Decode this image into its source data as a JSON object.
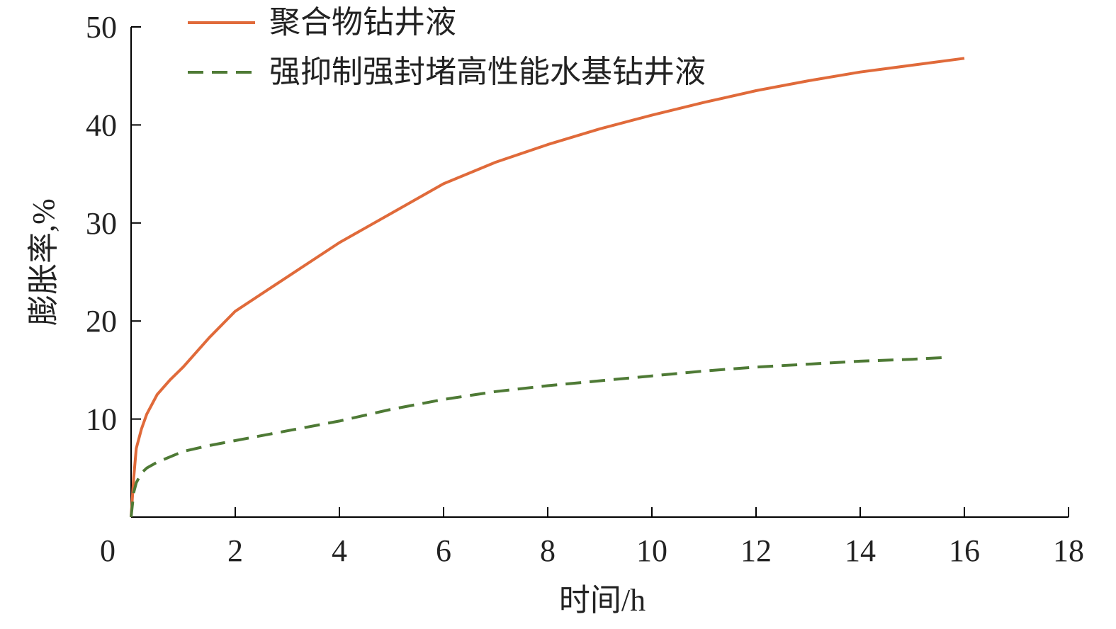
{
  "chart_data": {
    "type": "line",
    "title": "",
    "xlabel": "时间/h",
    "ylabel": "膨胀率,%",
    "xlim": [
      0,
      18
    ],
    "ylim": [
      0,
      50
    ],
    "x_ticks": [
      0,
      2,
      4,
      6,
      8,
      10,
      12,
      14,
      16,
      18
    ],
    "y_ticks": [
      10,
      20,
      30,
      40,
      50
    ],
    "grid": false,
    "legend_position": "top-left",
    "series": [
      {
        "name": "聚合物钻井液",
        "color": "#e06a3a",
        "style": "solid",
        "x": [
          0,
          0.05,
          0.1,
          0.2,
          0.3,
          0.5,
          0.75,
          1,
          1.5,
          2,
          3,
          4,
          5,
          6,
          7,
          8,
          9,
          10,
          11,
          12,
          13,
          14,
          15,
          16
        ],
        "y": [
          0,
          4,
          7,
          9,
          10.5,
          12.5,
          14,
          15.3,
          18.3,
          21,
          24.5,
          28,
          31,
          34,
          36.2,
          38,
          39.6,
          41,
          42.3,
          43.5,
          44.5,
          45.4,
          46.1,
          46.8
        ]
      },
      {
        "name": "强抑制强封堵高性能水基钻井液",
        "color": "#4e7a35",
        "style": "dashed",
        "x": [
          0,
          0.05,
          0.1,
          0.2,
          0.3,
          0.5,
          1,
          1.5,
          2,
          3,
          4,
          5,
          6,
          7,
          8,
          9,
          10,
          11,
          12,
          13,
          14,
          15,
          15.7
        ],
        "y": [
          0,
          2.5,
          3.5,
          4.5,
          5,
          5.6,
          6.7,
          7.3,
          7.8,
          8.8,
          9.8,
          11,
          12,
          12.8,
          13.4,
          13.9,
          14.4,
          14.9,
          15.3,
          15.6,
          15.9,
          16.1,
          16.3
        ]
      }
    ]
  }
}
